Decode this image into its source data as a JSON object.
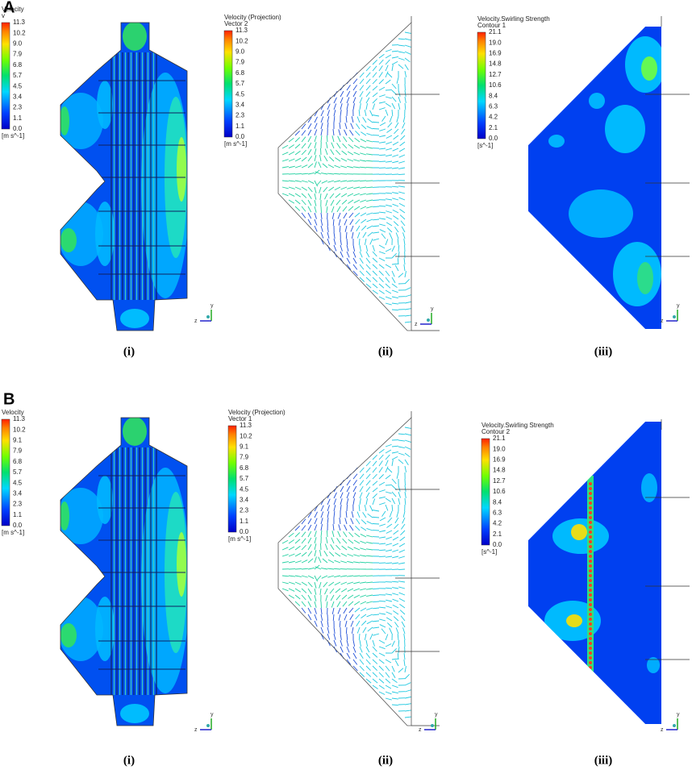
{
  "panels": [
    {
      "label": "A",
      "views": [
        {
          "legend": {
            "title": "Velocity",
            "subtitle": "v",
            "ticks": [
              "11.3",
              "10.2",
              "9.0",
              "7.9",
              "6.8",
              "5.7",
              "4.5",
              "3.4",
              "2.3",
              "1.1",
              "0.0"
            ],
            "unit": "[m s^-1]"
          },
          "caption": "(i)",
          "axes": [
            "y",
            "z"
          ]
        },
        {
          "legend": {
            "title": "Velocity (Projection)",
            "subtitle": "Vector 2",
            "ticks": [
              "11.3",
              "10.2",
              "9.0",
              "7.9",
              "6.8",
              "5.7",
              "4.5",
              "3.4",
              "2.3",
              "1.1",
              "0.0"
            ],
            "unit": "[m s^-1]"
          },
          "caption": "(ii)",
          "axes": [
            "y",
            "z"
          ]
        },
        {
          "legend": {
            "title": "Velocity.Swirling Strength",
            "subtitle": "Contour 1",
            "ticks": [
              "21.1",
              "19.0",
              "16.9",
              "14.8",
              "12.7",
              "10.6",
              "8.4",
              "6.3",
              "4.2",
              "2.1",
              "0.0"
            ],
            "unit": "[s^-1]"
          },
          "caption": "(iii)",
          "axes": [
            "y",
            "z"
          ]
        }
      ]
    },
    {
      "label": "B",
      "views": [
        {
          "legend": {
            "title": "Velocity",
            "ticks": [
              "11.3",
              "10.2",
              "9.1",
              "7.9",
              "6.8",
              "5.7",
              "4.5",
              "3.4",
              "2.3",
              "1.1",
              "0.0"
            ],
            "unit": "[m s^-1]"
          },
          "caption": "(i)",
          "axes": [
            "y",
            "z"
          ]
        },
        {
          "legend": {
            "title": "Velocity (Projection)",
            "subtitle": "Vector 1",
            "ticks": [
              "11.3",
              "10.2",
              "9.1",
              "7.9",
              "6.8",
              "5.7",
              "4.5",
              "3.4",
              "2.3",
              "1.1",
              "0.0"
            ],
            "unit": "[m s^-1]"
          },
          "caption": "(ii)",
          "axes": [
            "y",
            "z"
          ]
        },
        {
          "legend": {
            "title": "Velocity.Swirling Strength",
            "subtitle": "Contour 2",
            "ticks": [
              "21.1",
              "19.0",
              "16.9",
              "14.8",
              "12.7",
              "10.6",
              "8.4",
              "6.3",
              "4.2",
              "2.1",
              "0.0"
            ],
            "unit": "[s^-1]"
          },
          "caption": "(iii)",
          "axes": [
            "y",
            "z"
          ]
        }
      ]
    }
  ]
}
